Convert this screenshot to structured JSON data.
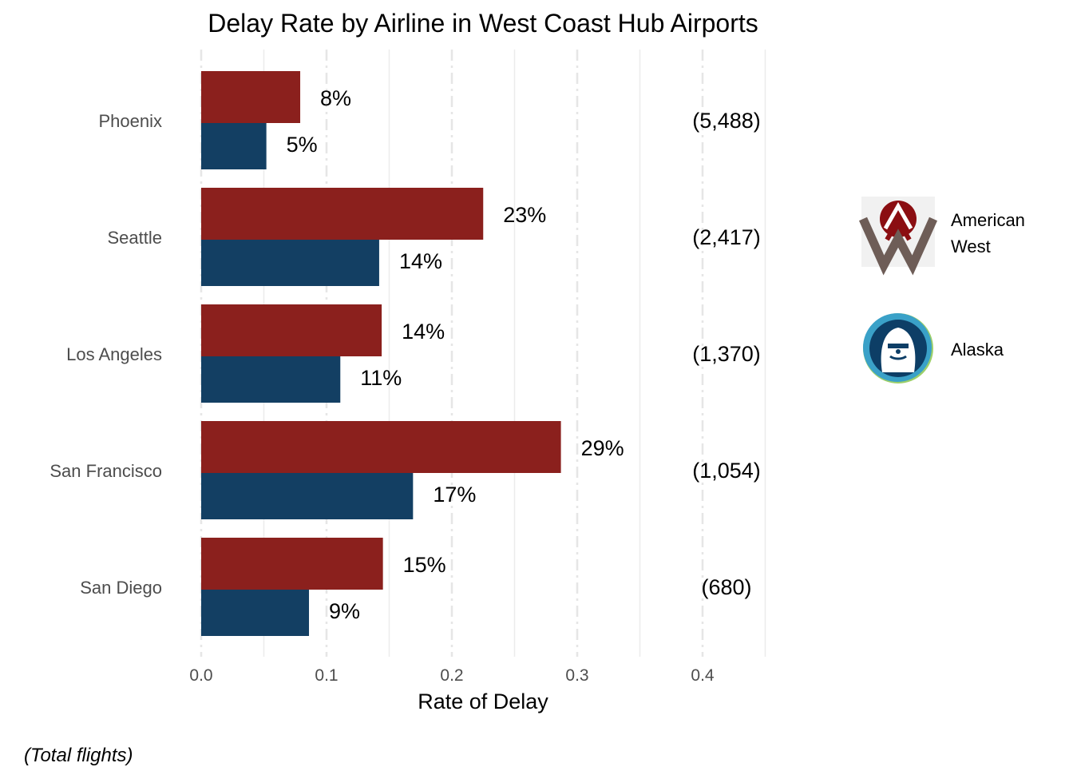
{
  "chart_data": {
    "type": "bar",
    "orientation": "horizontal",
    "title": "Delay Rate by Airline in West Coast Hub Airports",
    "xlabel": "Rate of Delay",
    "xlim": [
      0,
      0.45
    ],
    "x_ticks": [
      "0.0",
      "0.1",
      "0.2",
      "0.3",
      "0.4"
    ],
    "grid": true,
    "categories": [
      "Phoenix",
      "Seattle",
      "Los Angeles",
      "San Francisco",
      "San Diego"
    ],
    "series": [
      {
        "name": "American West",
        "color": "#8b201d",
        "values": [
          0.079,
          0.225,
          0.144,
          0.287,
          0.145
        ],
        "labels": [
          "8%",
          "23%",
          "14%",
          "29%",
          "15%"
        ]
      },
      {
        "name": "Alaska",
        "color": "#133f63",
        "values": [
          0.052,
          0.142,
          0.111,
          0.169,
          0.086
        ],
        "labels": [
          "5%",
          "14%",
          "11%",
          "17%",
          "9%"
        ]
      }
    ],
    "total_flights": [
      "(5,488)",
      "(2,417)",
      "(1,370)",
      "(1,054)",
      "(680)"
    ],
    "legend": {
      "position": "right",
      "items": [
        {
          "label_lines": [
            "American",
            "West"
          ],
          "icon": "american-west-logo"
        },
        {
          "label_lines": [
            "Alaska"
          ],
          "icon": "alaska-airlines-logo"
        }
      ]
    },
    "caption": "(Total flights)"
  }
}
